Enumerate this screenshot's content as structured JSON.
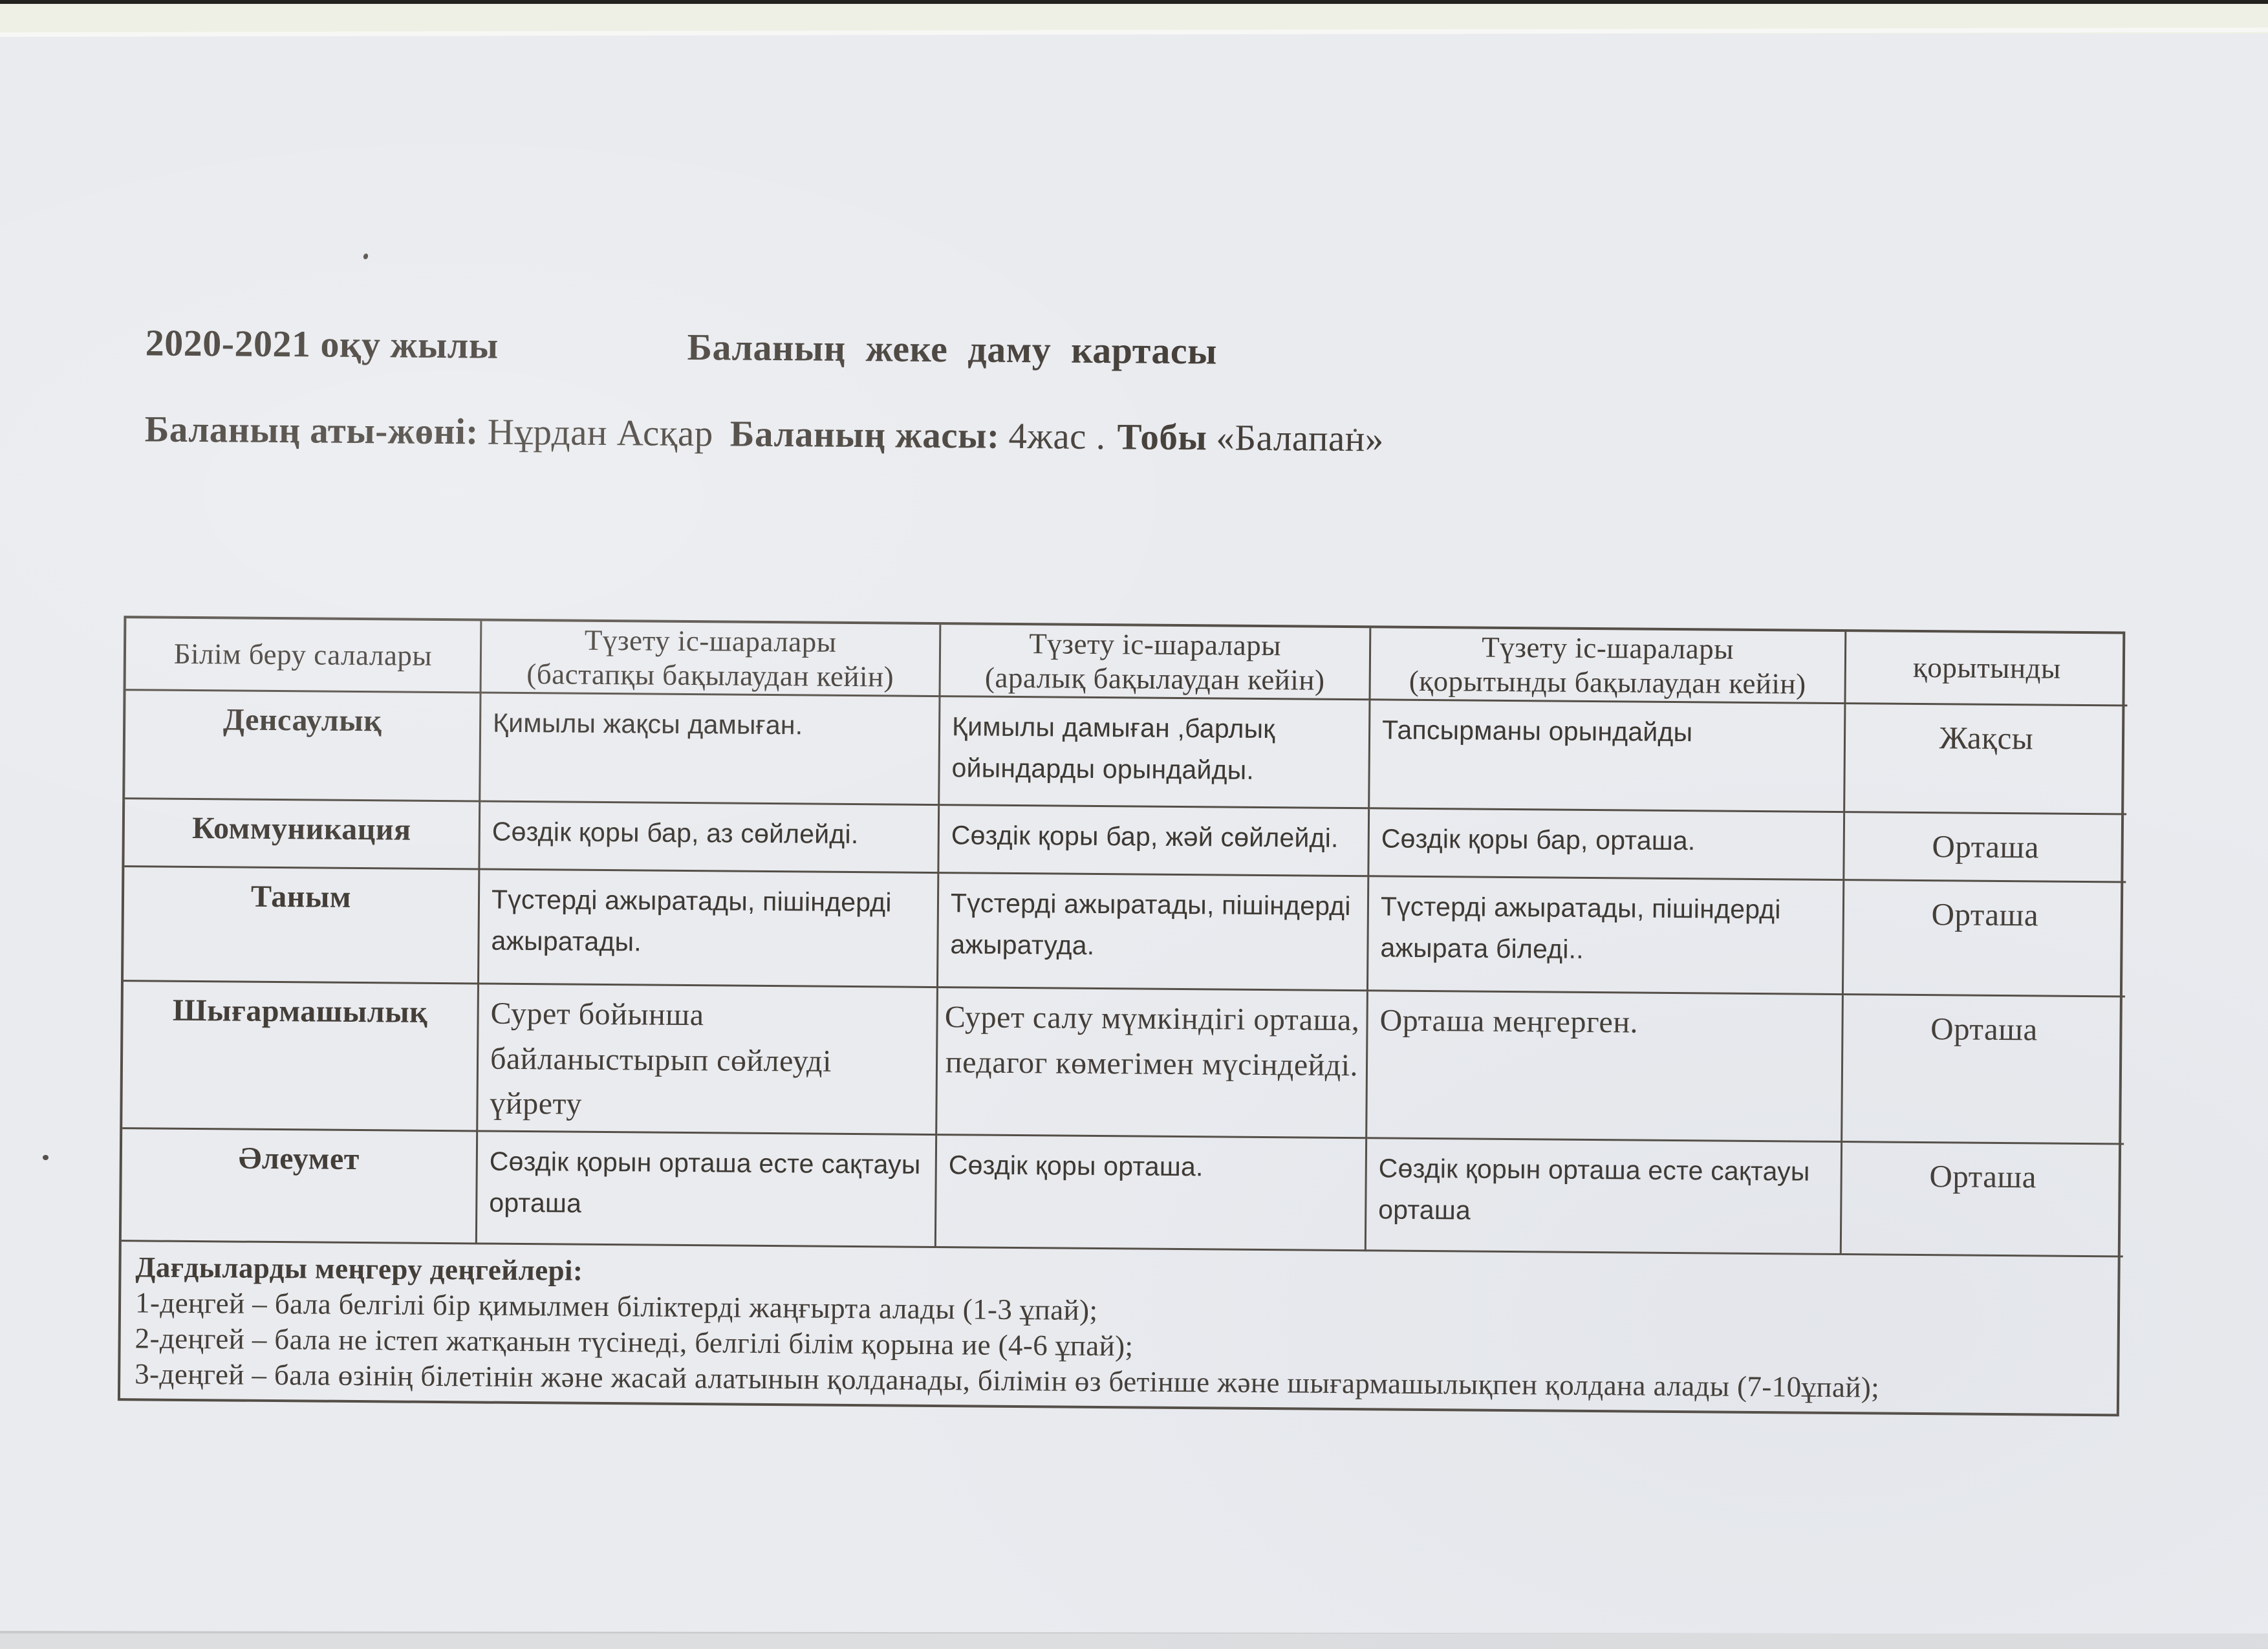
{
  "header": {
    "year": "2020-2021 оқу жылы",
    "title": "Баланың жеке даму картасы",
    "name_label": "Баланың аты-жөні:",
    "name_value": "Нұрдан Асқар",
    "age_label": "Баланың жасы:",
    "age_value": "4жас .",
    "group_label": "Тобы",
    "group_value": "«Балапан»"
  },
  "table": {
    "columns": [
      {
        "title": "Білім беру салалары",
        "subtitle": ""
      },
      {
        "title": "Түзету іс-шаралары",
        "subtitle": "(бастапқы бақылаудан кейін)"
      },
      {
        "title": "Түзету іс-шаралары",
        "subtitle": "(аралық бақылаудан кейін)"
      },
      {
        "title": "Түзету іс-шаралары",
        "subtitle": "(қорытынды  бақылаудан кейін)"
      },
      {
        "title": "қорытынды",
        "subtitle": ""
      }
    ],
    "rows": [
      {
        "category": "Денсаулық",
        "initial": "Қимылы  жақсы дамыған.",
        "interim": "Қимылы  дамыған ,барлық ойындарды  орындайды.",
        "final": "Тапсырманы орындайды",
        "result": "Жақсы"
      },
      {
        "category": "Коммуникация",
        "initial": "Сөздік қоры бар,  аз сөйлейді.",
        "interim": "Сөздік қоры бар, жәй сөйлейді.",
        "final": "Сөздік қоры бар, орташа.",
        "result": "Орташа"
      },
      {
        "category": "Таным",
        "initial": "Түстерді ажыратады,  пішіндерді ажыратады.",
        "interim": "Түстерді ажыратады, пішіндерді ажыратуда.",
        "final": "Түстерді ажыратады, пішіндерді ажырата біледі..",
        "result": "Орташа"
      },
      {
        "category": "Шығармашылық",
        "initial": "Сурет бойынша байланыстырып сөйлеуді үйрету",
        "interim": "Сурет салу мүмкіндігі орташа, педагог көмегімен мүсіндейді.",
        "final": "Орташа меңгерген.",
        "result": "Орташа"
      },
      {
        "category": "Әлеумет",
        "initial": "Сөздік қорын орташа  есте сақтауы орташа",
        "interim": "Сөздік қоры орташа.",
        "final": "Сөздік қорын орташа  есте сақтауы орташа",
        "result": "Орташа"
      }
    ],
    "legend": {
      "title": "Дағдыларды меңгеру деңгейлері:",
      "lines": [
        "1-деңгей – бала белгілі бір қимылмен біліктерді жаңғырта алады (1-3 ұпай);",
        "2-деңгей – бала не істеп жатқанын түсінеді, белгілі білім қорына ие (4-6 ұпай);",
        "3-деңгей – бала өзінің білетінін және жасай алатынын қолданады, білімін өз бетінше және шығармашылықпен қолдана алады (7-10ұпай);"
      ]
    }
  }
}
